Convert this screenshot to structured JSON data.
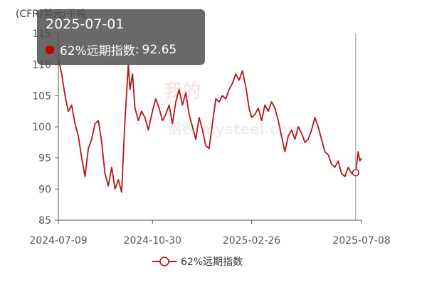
{
  "unit_label": "(CFR)美元/干吨",
  "watermark": {
    "line1": "我的",
    "line2": "钢铁",
    "site": "mysteel.com"
  },
  "tooltip": {
    "date": "2025-07-01",
    "series_name": "62%远期指数",
    "separator": ":",
    "value": "92.65",
    "dot_color": "#c00000"
  },
  "legend": {
    "label": "62%远期指数"
  },
  "chart_data": {
    "type": "line",
    "title": "",
    "xlabel": "",
    "ylabel": "(CFR)美元/干吨",
    "ylim": [
      85,
      115
    ],
    "yticks": [
      85,
      90,
      95,
      100,
      105,
      110,
      115
    ],
    "xlim": [
      "2024-07-09",
      "2025-07-08"
    ],
    "xticks": [
      "2024-07-09",
      "2024-10-30",
      "2025-02-26",
      "2025-07-08"
    ],
    "grid": false,
    "legend_position": "bottom",
    "series": [
      {
        "name": "62%远期指数",
        "color": "#b5151b",
        "points": [
          [
            "2024-07-09",
            111.0
          ],
          [
            "2024-07-13",
            108.5
          ],
          [
            "2024-07-17",
            105.0
          ],
          [
            "2024-07-21",
            102.5
          ],
          [
            "2024-07-25",
            103.5
          ],
          [
            "2024-07-29",
            100.5
          ],
          [
            "2024-08-02",
            98.5
          ],
          [
            "2024-08-06",
            95.0
          ],
          [
            "2024-08-10",
            92.0
          ],
          [
            "2024-08-14",
            96.5
          ],
          [
            "2024-08-18",
            98.0
          ],
          [
            "2024-08-22",
            100.5
          ],
          [
            "2024-08-26",
            101.0
          ],
          [
            "2024-08-30",
            97.5
          ],
          [
            "2024-09-03",
            92.5
          ],
          [
            "2024-09-07",
            90.5
          ],
          [
            "2024-09-11",
            93.5
          ],
          [
            "2024-09-15",
            90.0
          ],
          [
            "2024-09-19",
            91.5
          ],
          [
            "2024-09-23",
            89.5
          ],
          [
            "2024-09-27",
            101.0
          ],
          [
            "2024-10-01",
            110.0
          ],
          [
            "2024-10-03",
            106.0
          ],
          [
            "2024-10-06",
            108.5
          ],
          [
            "2024-10-09",
            103.0
          ],
          [
            "2024-10-13",
            101.0
          ],
          [
            "2024-10-17",
            102.5
          ],
          [
            "2024-10-21",
            101.5
          ],
          [
            "2024-10-25",
            99.5
          ],
          [
            "2024-10-30",
            102.5
          ],
          [
            "2024-11-03",
            104.5
          ],
          [
            "2024-11-07",
            103.0
          ],
          [
            "2024-11-11",
            101.0
          ],
          [
            "2024-11-15",
            102.0
          ],
          [
            "2024-11-19",
            103.5
          ],
          [
            "2024-11-23",
            100.5
          ],
          [
            "2024-11-27",
            104.0
          ],
          [
            "2024-12-01",
            106.0
          ],
          [
            "2024-12-05",
            103.5
          ],
          [
            "2024-12-09",
            105.5
          ],
          [
            "2024-12-13",
            102.0
          ],
          [
            "2024-12-17",
            100.0
          ],
          [
            "2024-12-21",
            98.0
          ],
          [
            "2024-12-25",
            101.5
          ],
          [
            "2024-12-29",
            99.5
          ],
          [
            "2025-01-02",
            97.0
          ],
          [
            "2025-01-06",
            96.5
          ],
          [
            "2025-01-10",
            100.5
          ],
          [
            "2025-01-14",
            104.5
          ],
          [
            "2025-01-18",
            104.0
          ],
          [
            "2025-01-22",
            105.0
          ],
          [
            "2025-01-26",
            104.5
          ],
          [
            "2025-01-30",
            106.0
          ],
          [
            "2025-02-03",
            107.0
          ],
          [
            "2025-02-07",
            108.5
          ],
          [
            "2025-02-11",
            107.5
          ],
          [
            "2025-02-15",
            109.0
          ],
          [
            "2025-02-19",
            106.5
          ],
          [
            "2025-02-23",
            103.0
          ],
          [
            "2025-02-26",
            101.5
          ],
          [
            "2025-03-02",
            102.0
          ],
          [
            "2025-03-06",
            103.0
          ],
          [
            "2025-03-10",
            101.0
          ],
          [
            "2025-03-14",
            103.5
          ],
          [
            "2025-03-18",
            102.5
          ],
          [
            "2025-03-22",
            104.0
          ],
          [
            "2025-03-26",
            103.0
          ],
          [
            "2025-03-30",
            101.0
          ],
          [
            "2025-04-03",
            98.5
          ],
          [
            "2025-04-07",
            96.0
          ],
          [
            "2025-04-11",
            98.5
          ],
          [
            "2025-04-15",
            99.5
          ],
          [
            "2025-04-19",
            98.0
          ],
          [
            "2025-04-23",
            100.0
          ],
          [
            "2025-04-27",
            99.0
          ],
          [
            "2025-05-01",
            97.5
          ],
          [
            "2025-05-05",
            98.0
          ],
          [
            "2025-05-09",
            99.5
          ],
          [
            "2025-05-13",
            101.5
          ],
          [
            "2025-05-17",
            100.0
          ],
          [
            "2025-05-21",
            98.0
          ],
          [
            "2025-05-25",
            96.0
          ],
          [
            "2025-05-29",
            95.5
          ],
          [
            "2025-06-02",
            94.0
          ],
          [
            "2025-06-06",
            93.5
          ],
          [
            "2025-06-10",
            94.5
          ],
          [
            "2025-06-14",
            92.5
          ],
          [
            "2025-06-18",
            92.0
          ],
          [
            "2025-06-22",
            93.5
          ],
          [
            "2025-06-26",
            92.5
          ],
          [
            "2025-07-01",
            92.65
          ],
          [
            "2025-07-04",
            96.0
          ],
          [
            "2025-07-06",
            94.5
          ],
          [
            "2025-07-08",
            95.0
          ]
        ]
      }
    ],
    "highlight": {
      "date": "2025-07-01",
      "value": 92.65
    }
  }
}
